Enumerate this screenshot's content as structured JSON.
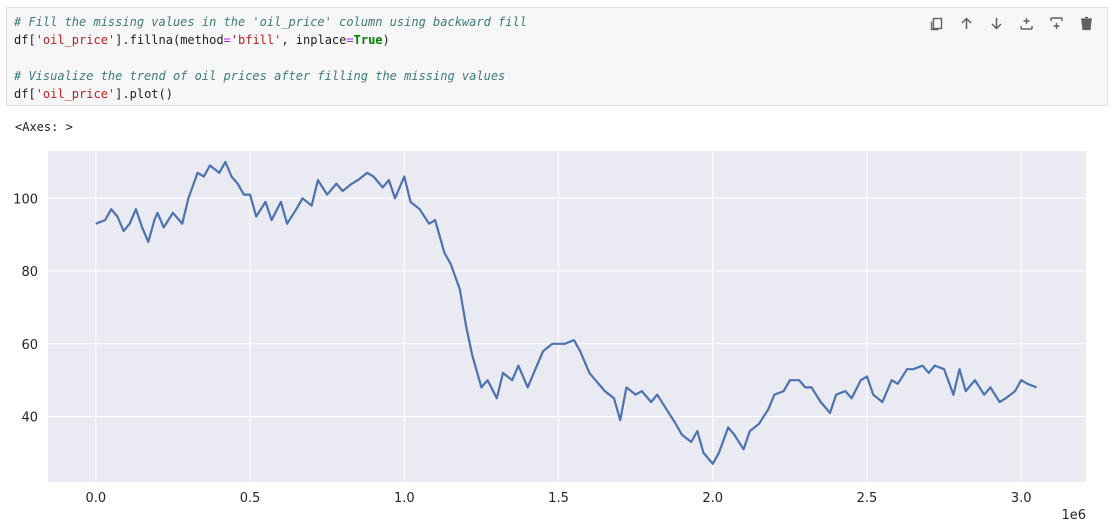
{
  "cell": {
    "code_lines": [
      {
        "parts": [
          {
            "t": "# Fill the missing values in the 'oil_price' column using backward fill",
            "c": "cm"
          }
        ]
      },
      {
        "parts": [
          {
            "t": "df[",
            "c": ""
          },
          {
            "t": "'oil_price'",
            "c": "st"
          },
          {
            "t": "].fillna(method",
            "c": ""
          },
          {
            "t": "=",
            "c": "op"
          },
          {
            "t": "'bfill'",
            "c": "st"
          },
          {
            "t": ", inplace",
            "c": ""
          },
          {
            "t": "=",
            "c": "op"
          },
          {
            "t": "True",
            "c": "kw"
          },
          {
            "t": ")",
            "c": ""
          }
        ]
      },
      {
        "parts": [
          {
            "t": "",
            "c": ""
          }
        ]
      },
      {
        "parts": [
          {
            "t": "# Visualize the trend of oil prices after filling the missing values",
            "c": "cm"
          }
        ]
      },
      {
        "parts": [
          {
            "t": "df[",
            "c": ""
          },
          {
            "t": "'oil_price'",
            "c": "st"
          },
          {
            "t": "].plot()",
            "c": ""
          }
        ]
      }
    ]
  },
  "toolbar": {
    "buttons": [
      {
        "name": "duplicate-cell-button",
        "icon": "duplicate-icon"
      },
      {
        "name": "move-cell-up-button",
        "icon": "arrow-up-icon"
      },
      {
        "name": "move-cell-down-button",
        "icon": "arrow-down-icon"
      },
      {
        "name": "insert-cell-above-button",
        "icon": "insert-above-icon"
      },
      {
        "name": "insert-cell-below-button",
        "icon": "insert-below-icon"
      },
      {
        "name": "delete-cell-button",
        "icon": "trash-icon"
      }
    ]
  },
  "output": {
    "text": "<Axes: >"
  },
  "chart_data": {
    "type": "line",
    "title": "",
    "xlabel": "",
    "ylabel": "",
    "x_offset_label": "1e6",
    "xlim": [
      -0.155,
      3.21
    ],
    "ylim": [
      22,
      113
    ],
    "x_ticks": [
      0.0,
      0.5,
      1.0,
      1.5,
      2.0,
      2.5,
      3.0
    ],
    "x_tick_labels": [
      "0.0",
      "0.5",
      "1.0",
      "1.5",
      "2.0",
      "2.5",
      "3.0"
    ],
    "y_ticks": [
      40,
      60,
      80,
      100
    ],
    "y_tick_labels": [
      "40",
      "60",
      "80",
      "100"
    ],
    "grid": true,
    "background": "#eaeaf2",
    "line_color": "#4c72b0",
    "series": [
      {
        "x": [
          0.0,
          0.03,
          0.05,
          0.07,
          0.09,
          0.11,
          0.13,
          0.15,
          0.17,
          0.19,
          0.2,
          0.22,
          0.25,
          0.28,
          0.3,
          0.33,
          0.35,
          0.37,
          0.4,
          0.42,
          0.44,
          0.46,
          0.48,
          0.5,
          0.52,
          0.55,
          0.57,
          0.6,
          0.62,
          0.65,
          0.67,
          0.7,
          0.72,
          0.75,
          0.78,
          0.8,
          0.83,
          0.85,
          0.88,
          0.9,
          0.93,
          0.95,
          0.97,
          1.0,
          1.02,
          1.05,
          1.08,
          1.1,
          1.13,
          1.15,
          1.18,
          1.2,
          1.22,
          1.25,
          1.27,
          1.3,
          1.32,
          1.35,
          1.37,
          1.4,
          1.42,
          1.45,
          1.48,
          1.5,
          1.52,
          1.55,
          1.57,
          1.6,
          1.62,
          1.65,
          1.68,
          1.7,
          1.72,
          1.75,
          1.77,
          1.8,
          1.82,
          1.85,
          1.88,
          1.9,
          1.93,
          1.95,
          1.97,
          2.0,
          2.02,
          2.05,
          2.07,
          2.1,
          2.12,
          2.15,
          2.18,
          2.2,
          2.23,
          2.25,
          2.28,
          2.3,
          2.32,
          2.35,
          2.38,
          2.4,
          2.43,
          2.45,
          2.48,
          2.5,
          2.52,
          2.55,
          2.58,
          2.6,
          2.63,
          2.65,
          2.68,
          2.7,
          2.72,
          2.75,
          2.78,
          2.8,
          2.82,
          2.85,
          2.88,
          2.9,
          2.93,
          2.95,
          2.98,
          3.0,
          3.02,
          3.05
        ],
        "values": [
          93,
          94,
          97,
          95,
          91,
          93,
          97,
          92,
          88,
          94,
          96,
          92,
          96,
          93,
          100,
          107,
          106,
          109,
          107,
          110,
          106,
          104,
          101,
          101,
          95,
          99,
          94,
          99,
          93,
          97,
          100,
          98,
          105,
          101,
          104,
          102,
          104,
          105,
          107,
          106,
          103,
          105,
          100,
          106,
          99,
          97,
          93,
          94,
          85,
          82,
          75,
          65,
          57,
          48,
          50,
          45,
          52,
          50,
          54,
          48,
          52,
          58,
          60,
          60,
          60,
          61,
          58,
          52,
          50,
          47,
          45,
          39,
          48,
          46,
          47,
          44,
          46,
          42,
          38,
          35,
          33,
          36,
          30,
          27,
          30,
          37,
          35,
          31,
          36,
          38,
          42,
          46,
          47,
          50,
          50,
          48,
          48,
          44,
          41,
          46,
          47,
          45,
          50,
          51,
          46,
          44,
          50,
          49,
          53,
          53,
          54,
          52,
          54,
          53,
          46,
          53,
          47,
          50,
          46,
          48,
          44,
          45,
          47,
          50,
          49,
          48
        ]
      }
    ]
  }
}
